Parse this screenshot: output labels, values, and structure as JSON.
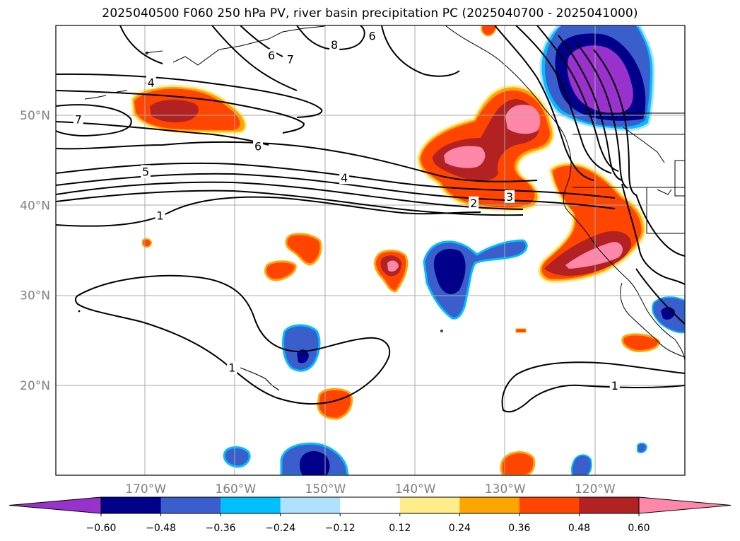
{
  "title": "2025040500 F060 250 hPa PV, river basin precipitation PC (2025040700 - 2025041000)",
  "map": {
    "lat_labels": [
      {
        "text": "50°N",
        "lat": 50
      },
      {
        "text": "40°N",
        "lat": 40
      },
      {
        "text": "30°N",
        "lat": 30
      },
      {
        "text": "20°N",
        "lat": 20
      }
    ],
    "lon_labels": [
      {
        "text": "170°W",
        "lon": -170
      },
      {
        "text": "160°W",
        "lon": -160
      },
      {
        "text": "150°W",
        "lon": -150
      },
      {
        "text": "140°W",
        "lon": -140
      },
      {
        "text": "130°W",
        "lon": -130
      },
      {
        "text": "120°W",
        "lon": -120
      }
    ],
    "extent": {
      "lon_min": -180,
      "lon_max": -110,
      "lat_min": 10,
      "lat_max": 60
    },
    "pv_contour_labels": [
      {
        "text": "7",
        "lon": -177.5,
        "lat": 49.5
      },
      {
        "text": "6",
        "lon": -157.5,
        "lat": 46.5
      },
      {
        "text": "5",
        "lon": -170,
        "lat": 43.7
      },
      {
        "text": "4",
        "lon": -147.9,
        "lat": 43.0
      },
      {
        "text": "1",
        "lon": -168.4,
        "lat": 38.8
      },
      {
        "text": "2",
        "lon": -133.5,
        "lat": 40.2
      },
      {
        "text": "3",
        "lon": -129.5,
        "lat": 40.9
      },
      {
        "text": "1",
        "lon": -117.8,
        "lat": 19.9
      },
      {
        "text": "1",
        "lon": -160.4,
        "lat": 21.9
      },
      {
        "text": "4",
        "lon": -169.4,
        "lat": 53.6
      },
      {
        "text": "6",
        "lon": -144.8,
        "lat": 58.8
      },
      {
        "text": "8",
        "lon": -149,
        "lat": 57.8
      },
      {
        "text": "6",
        "lon": -156,
        "lat": 56.6
      },
      {
        "text": "7",
        "lon": -153.9,
        "lat": 56.2
      }
    ]
  },
  "colorbar": {
    "levels": [
      "−0.60",
      "−0.48",
      "−0.36",
      "−0.24",
      "−0.12",
      "0.12",
      "0.24",
      "0.36",
      "0.48",
      "0.60"
    ],
    "colors": [
      "#9932cc",
      "#00008b",
      "#3a5fcd",
      "#00bfff",
      "#b0e2ff",
      "#ffffff",
      "#ffec8b",
      "#ffa500",
      "#ff4500",
      "#b22222",
      "#ff88aa"
    ]
  }
}
